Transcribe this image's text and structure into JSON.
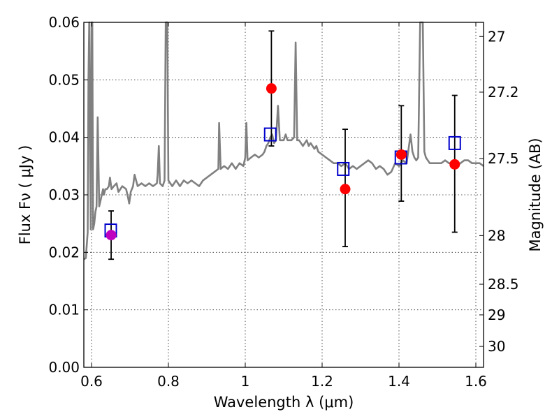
{
  "chart_data": {
    "type": "scatter",
    "title": "",
    "xlabel": "Wavelength  λ (μm)",
    "ylabel": "Flux  Fν ( μJy )",
    "ylabel_right": "Magnitude (AB)",
    "xlim": [
      0.58,
      1.62
    ],
    "ylim": [
      0.0,
      0.06
    ],
    "grid": true,
    "x_ticks": [
      0.6,
      0.8,
      1.0,
      1.2,
      1.4,
      1.6
    ],
    "x_tick_labels": [
      "0.6",
      "0.8",
      "1",
      "1.2",
      "1.4",
      "1.6"
    ],
    "y_ticks": [
      0.0,
      0.01,
      0.02,
      0.03,
      0.04,
      0.05,
      0.06
    ],
    "y_tick_labels": [
      "0.00",
      "0.01",
      "0.02",
      "0.03",
      "0.04",
      "0.05",
      "0.06"
    ],
    "right_ticks": [
      {
        "flux": 0.05754,
        "label": "27"
      },
      {
        "flux": 0.04786,
        "label": "27.2"
      },
      {
        "flux": 0.03631,
        "label": "27.5"
      },
      {
        "flux": 0.02291,
        "label": "28"
      },
      {
        "flux": 0.01445,
        "label": "28.5"
      },
      {
        "flux": 0.00912,
        "label": "29"
      },
      {
        "flux": 0.00363,
        "label": "30"
      }
    ],
    "colors": {
      "model": "#808080",
      "observed": "#ff0000",
      "observed_first": "#bf00bf",
      "model_band": "#0000cc",
      "errorbar": "#000000"
    },
    "series": [
      {
        "kind": "line",
        "points": [
          [
            0.58,
            0.0188
          ],
          [
            0.585,
            0.019
          ],
          [
            0.59,
            0.0235
          ],
          [
            0.592,
            0.05
          ],
          [
            0.594,
            0.06
          ],
          [
            0.596,
            0.04
          ],
          [
            0.598,
            0.024
          ],
          [
            0.6,
            0.06
          ],
          [
            0.602,
            0.06
          ],
          [
            0.604,
            0.024
          ],
          [
            0.607,
            0.025
          ],
          [
            0.61,
            0.027
          ],
          [
            0.613,
            0.028
          ],
          [
            0.616,
            0.0435
          ],
          [
            0.62,
            0.028
          ],
          [
            0.625,
            0.0295
          ],
          [
            0.63,
            0.031
          ],
          [
            0.632,
            0.03
          ],
          [
            0.636,
            0.031
          ],
          [
            0.64,
            0.031
          ],
          [
            0.645,
            0.0315
          ],
          [
            0.648,
            0.033
          ],
          [
            0.652,
            0.031
          ],
          [
            0.658,
            0.0315
          ],
          [
            0.665,
            0.032
          ],
          [
            0.67,
            0.0305
          ],
          [
            0.675,
            0.031
          ],
          [
            0.68,
            0.0315
          ],
          [
            0.69,
            0.031
          ],
          [
            0.695,
            0.0295
          ],
          [
            0.698,
            0.0285
          ],
          [
            0.702,
            0.0305
          ],
          [
            0.708,
            0.0315
          ],
          [
            0.712,
            0.0335
          ],
          [
            0.716,
            0.0325
          ],
          [
            0.72,
            0.0315
          ],
          [
            0.73,
            0.032
          ],
          [
            0.74,
            0.0315
          ],
          [
            0.75,
            0.032
          ],
          [
            0.76,
            0.0315
          ],
          [
            0.77,
            0.032
          ],
          [
            0.772,
            0.0335
          ],
          [
            0.775,
            0.0385
          ],
          [
            0.778,
            0.032
          ],
          [
            0.785,
            0.0315
          ],
          [
            0.79,
            0.0325
          ],
          [
            0.793,
            0.06
          ],
          [
            0.797,
            0.06
          ],
          [
            0.8,
            0.0325
          ],
          [
            0.81,
            0.0315
          ],
          [
            0.82,
            0.0325
          ],
          [
            0.83,
            0.0315
          ],
          [
            0.84,
            0.0325
          ],
          [
            0.85,
            0.032
          ],
          [
            0.86,
            0.0325
          ],
          [
            0.87,
            0.032
          ],
          [
            0.88,
            0.0315
          ],
          [
            0.89,
            0.0325
          ],
          [
            0.9,
            0.033
          ],
          [
            0.91,
            0.0335
          ],
          [
            0.92,
            0.034
          ],
          [
            0.93,
            0.0345
          ],
          [
            0.932,
            0.0425
          ],
          [
            0.936,
            0.0345
          ],
          [
            0.945,
            0.035
          ],
          [
            0.955,
            0.0345
          ],
          [
            0.965,
            0.0355
          ],
          [
            0.975,
            0.0345
          ],
          [
            0.985,
            0.0355
          ],
          [
            0.995,
            0.035
          ],
          [
            1.0,
            0.0365
          ],
          [
            1.003,
            0.0425
          ],
          [
            1.006,
            0.036
          ],
          [
            1.015,
            0.0365
          ],
          [
            1.025,
            0.037
          ],
          [
            1.035,
            0.0365
          ],
          [
            1.045,
            0.037
          ],
          [
            1.05,
            0.0375
          ],
          [
            1.055,
            0.0385
          ],
          [
            1.06,
            0.039
          ],
          [
            1.065,
            0.04
          ],
          [
            1.07,
            0.0405
          ],
          [
            1.075,
            0.039
          ],
          [
            1.08,
            0.0395
          ],
          [
            1.085,
            0.0455
          ],
          [
            1.09,
            0.0395
          ],
          [
            1.1,
            0.0395
          ],
          [
            1.105,
            0.0405
          ],
          [
            1.11,
            0.0395
          ],
          [
            1.12,
            0.0395
          ],
          [
            1.127,
            0.04
          ],
          [
            1.131,
            0.0565
          ],
          [
            1.135,
            0.0395
          ],
          [
            1.14,
            0.0395
          ],
          [
            1.15,
            0.0385
          ],
          [
            1.16,
            0.0395
          ],
          [
            1.165,
            0.0385
          ],
          [
            1.17,
            0.039
          ],
          [
            1.18,
            0.038
          ],
          [
            1.185,
            0.0385
          ],
          [
            1.19,
            0.0375
          ],
          [
            1.2,
            0.037
          ],
          [
            1.21,
            0.0365
          ],
          [
            1.22,
            0.036
          ],
          [
            1.23,
            0.0355
          ],
          [
            1.24,
            0.0355
          ],
          [
            1.25,
            0.035
          ],
          [
            1.26,
            0.0355
          ],
          [
            1.27,
            0.0345
          ],
          [
            1.28,
            0.035
          ],
          [
            1.29,
            0.0345
          ],
          [
            1.3,
            0.035
          ],
          [
            1.31,
            0.0355
          ],
          [
            1.32,
            0.036
          ],
          [
            1.33,
            0.0355
          ],
          [
            1.34,
            0.0345
          ],
          [
            1.35,
            0.035
          ],
          [
            1.36,
            0.0345
          ],
          [
            1.37,
            0.0335
          ],
          [
            1.38,
            0.034
          ],
          [
            1.39,
            0.0355
          ],
          [
            1.4,
            0.035
          ],
          [
            1.41,
            0.036
          ],
          [
            1.42,
            0.0355
          ],
          [
            1.43,
            0.0405
          ],
          [
            1.435,
            0.0375
          ],
          [
            1.44,
            0.0365
          ],
          [
            1.445,
            0.036
          ],
          [
            1.45,
            0.0365
          ],
          [
            1.455,
            0.06
          ],
          [
            1.462,
            0.06
          ],
          [
            1.466,
            0.0375
          ],
          [
            1.47,
            0.0365
          ],
          [
            1.48,
            0.0355
          ],
          [
            1.49,
            0.0355
          ],
          [
            1.5,
            0.0355
          ],
          [
            1.51,
            0.0355
          ],
          [
            1.52,
            0.036
          ],
          [
            1.53,
            0.0355
          ],
          [
            1.54,
            0.0355
          ],
          [
            1.55,
            0.035
          ],
          [
            1.56,
            0.0355
          ],
          [
            1.57,
            0.036
          ],
          [
            1.58,
            0.036
          ],
          [
            1.59,
            0.0355
          ],
          [
            1.6,
            0.0355
          ],
          [
            1.61,
            0.0355
          ],
          [
            1.62,
            0.035
          ]
        ]
      },
      {
        "kind": "squares",
        "x": [
          0.65,
          1.065,
          1.255,
          1.405,
          1.545
        ],
        "y": [
          0.0238,
          0.0405,
          0.0345,
          0.0365,
          0.039
        ]
      },
      {
        "kind": "points",
        "x": [
          0.651,
          1.068,
          1.26,
          1.406,
          1.545
        ],
        "y": [
          0.023,
          0.0485,
          0.031,
          0.037,
          0.0353
        ],
        "yerr_low": [
          0.0042,
          0.01,
          0.01,
          0.0081,
          0.0118
        ],
        "yerr_high": [
          0.0042,
          0.01,
          0.0104,
          0.0085,
          0.012
        ]
      }
    ]
  }
}
